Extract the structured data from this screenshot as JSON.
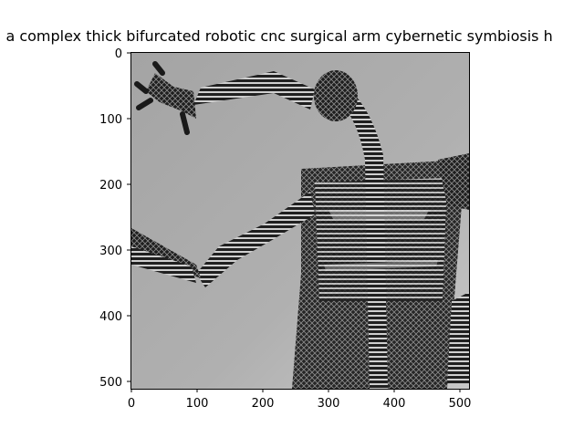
{
  "figure": {
    "title": "t,  a complex thick bifurcated robotic cnc surgical arm cybernetic symbiosis h",
    "x_ticks": [
      "0",
      "100",
      "200",
      "300",
      "400",
      "500"
    ],
    "y_ticks": [
      "0",
      "100",
      "200",
      "300",
      "400",
      "500"
    ],
    "image": {
      "subject": "grayscale-robot-arm-render",
      "palette": [
        "#9a9a9a",
        "#b9b9b9",
        "#2a2a2a",
        "#e0e0e0"
      ]
    }
  }
}
